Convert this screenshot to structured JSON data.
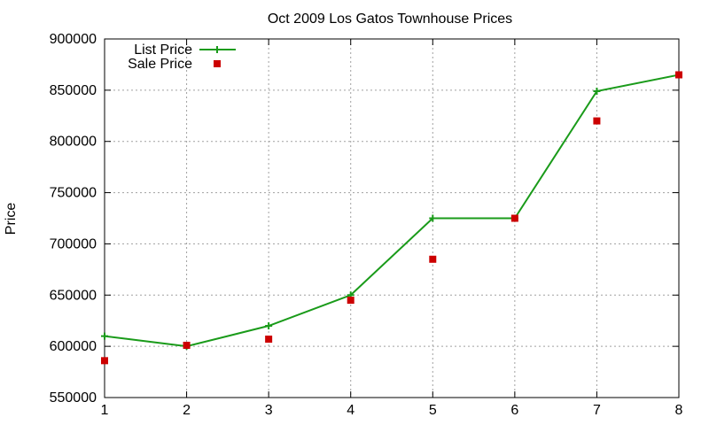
{
  "chart_data": {
    "type": "line",
    "title": "Oct 2009 Los Gatos Townhouse Prices",
    "xlabel": "",
    "ylabel": "Price",
    "x": [
      1,
      2,
      3,
      4,
      5,
      6,
      7,
      8
    ],
    "xlim": [
      1,
      8
    ],
    "ylim": [
      550000,
      900000
    ],
    "xticks": [
      "1",
      "2",
      "3",
      "4",
      "5",
      "6",
      "7",
      "8"
    ],
    "yticks": [
      "550000",
      "600000",
      "650000",
      "700000",
      "750000",
      "800000",
      "850000",
      "900000"
    ],
    "grid": true,
    "legend_position": "top-left",
    "series": [
      {
        "name": "List Price",
        "style": "line-with-plus-markers",
        "color": "#1a9b1a",
        "values": [
          610000,
          600000,
          620000,
          650000,
          725000,
          725000,
          849000,
          865000
        ]
      },
      {
        "name": "Sale Price",
        "style": "square-markers",
        "color": "#cc0000",
        "values": [
          586000,
          601000,
          607000,
          645000,
          685000,
          725000,
          820000,
          865000
        ]
      }
    ]
  }
}
